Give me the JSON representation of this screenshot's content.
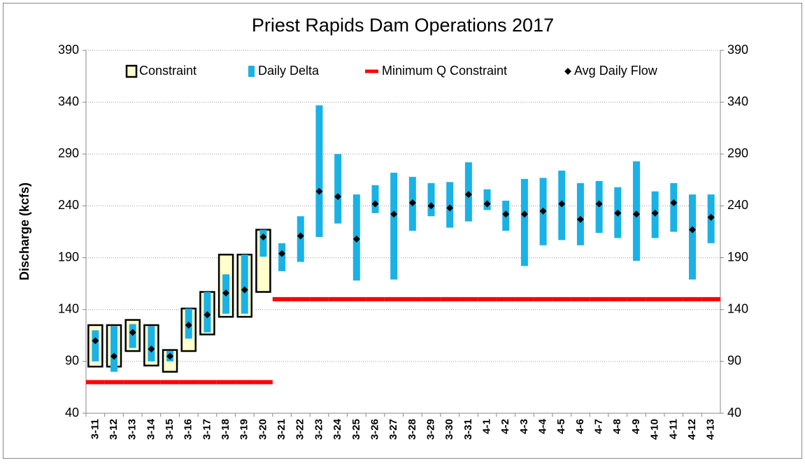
{
  "chart_data": {
    "type": "range",
    "title": "Priest Rapids Dam Operations  2017",
    "y_label": "Discharge (kcfs)",
    "categories": [
      "3-11",
      "3-12",
      "3-13",
      "3-14",
      "3-15",
      "3-16",
      "3-17",
      "3-18",
      "3-19",
      "3-20",
      "3-21",
      "3-22",
      "3-23",
      "3-24",
      "3-25",
      "3-26",
      "3-27",
      "3-28",
      "3-29",
      "3-30",
      "3-31",
      "4-1",
      "4-2",
      "4-3",
      "4-4",
      "4-5",
      "4-6",
      "4-7",
      "4-8",
      "4-9",
      "4-10",
      "4-11",
      "4-12",
      "4-13"
    ],
    "ylim": [
      40,
      390
    ],
    "yticks": [
      40,
      90,
      140,
      190,
      240,
      290,
      340,
      390
    ],
    "y2lim": [
      40,
      390
    ],
    "y2ticks": [
      40,
      90,
      140,
      190,
      240,
      290,
      340,
      390
    ],
    "grid": true,
    "series": [
      {
        "name": "Constraint",
        "color": "#ffffcc",
        "low": [
          85,
          85,
          100,
          86,
          80,
          100,
          116,
          133,
          133,
          157,
          null,
          null,
          null,
          null,
          null,
          null,
          null,
          null,
          null,
          null,
          null,
          null,
          null,
          null,
          null,
          null,
          null,
          null,
          null,
          null,
          null,
          null,
          null,
          null
        ],
        "high": [
          125,
          125,
          130,
          125,
          101,
          141,
          157,
          193,
          193,
          217,
          null,
          null,
          null,
          null,
          null,
          null,
          null,
          null,
          null,
          null,
          null,
          null,
          null,
          null,
          null,
          null,
          null,
          null,
          null,
          null,
          null,
          null,
          null,
          null
        ]
      },
      {
        "name": "Daily Delta",
        "color": "#19b2e6",
        "low": [
          90,
          80,
          103,
          90,
          90,
          112,
          118,
          136,
          136,
          191,
          177,
          186,
          210,
          223,
          168,
          233,
          169,
          216,
          230,
          219,
          225,
          236,
          216,
          182,
          202,
          207,
          202,
          214,
          209,
          187,
          209,
          215,
          169,
          204
        ],
        "high": [
          120,
          124,
          126,
          124,
          100,
          141,
          157,
          174,
          193,
          217,
          204,
          230,
          337,
          290,
          251,
          260,
          272,
          268,
          262,
          263,
          282,
          256,
          245,
          266,
          267,
          274,
          262,
          264,
          258,
          283,
          254,
          262,
          251,
          251
        ]
      },
      {
        "name": "Minimum Q Constraint",
        "color": "#ff0000",
        "values": [
          70,
          70,
          70,
          70,
          70,
          70,
          70,
          70,
          70,
          70,
          150,
          150,
          150,
          150,
          150,
          150,
          150,
          150,
          150,
          150,
          150,
          150,
          150,
          150,
          150,
          150,
          150,
          150,
          150,
          150,
          150,
          150,
          150,
          150
        ]
      },
      {
        "name": "Avg Daily Flow",
        "color": "#000000",
        "values": [
          110,
          95,
          118,
          102,
          95,
          125,
          135,
          156,
          159,
          210,
          194,
          211,
          254,
          249,
          208,
          242,
          232,
          243,
          240,
          238,
          251,
          242,
          232,
          232,
          235,
          242,
          227,
          242,
          233,
          232,
          233,
          243,
          217,
          229
        ]
      }
    ]
  }
}
